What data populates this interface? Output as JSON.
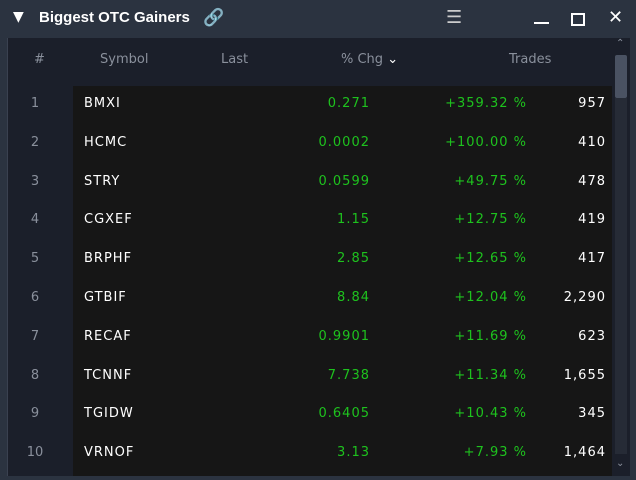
{
  "window": {
    "title": "Biggest OTC Gainers"
  },
  "columns": {
    "num": "#",
    "symbol": "Symbol",
    "last": "Last",
    "chg": "% Chg",
    "trades": "Trades"
  },
  "rows": [
    {
      "n": "1",
      "symbol": "BMXI",
      "last": "0.271",
      "chg": "+359.32 %",
      "trades": "957"
    },
    {
      "n": "2",
      "symbol": "HCMC",
      "last": "0.0002",
      "chg": "+100.00 %",
      "trades": "410"
    },
    {
      "n": "3",
      "symbol": "STRY",
      "last": "0.0599",
      "chg": "+49.75 %",
      "trades": "478"
    },
    {
      "n": "4",
      "symbol": "CGXEF",
      "last": "1.15",
      "chg": "+12.75 %",
      "trades": "419"
    },
    {
      "n": "5",
      "symbol": "BRPHF",
      "last": "2.85",
      "chg": "+12.65 %",
      "trades": "417"
    },
    {
      "n": "6",
      "symbol": "GTBIF",
      "last": "8.84",
      "chg": "+12.04 %",
      "trades": "2,290"
    },
    {
      "n": "7",
      "symbol": "RECAF",
      "last": "0.9901",
      "chg": "+11.69 %",
      "trades": "623"
    },
    {
      "n": "8",
      "symbol": "TCNNF",
      "last": "7.738",
      "chg": "+11.34 %",
      "trades": "1,655"
    },
    {
      "n": "9",
      "symbol": "TGIDW",
      "last": "0.6405",
      "chg": "+10.43 %",
      "trades": "345"
    },
    {
      "n": "10",
      "symbol": "VRNOF",
      "last": "3.13",
      "chg": "+7.93 %",
      "trades": "1,464"
    }
  ],
  "colors": {
    "positive": "#1ec21e",
    "titlebar": "#2b3340"
  }
}
